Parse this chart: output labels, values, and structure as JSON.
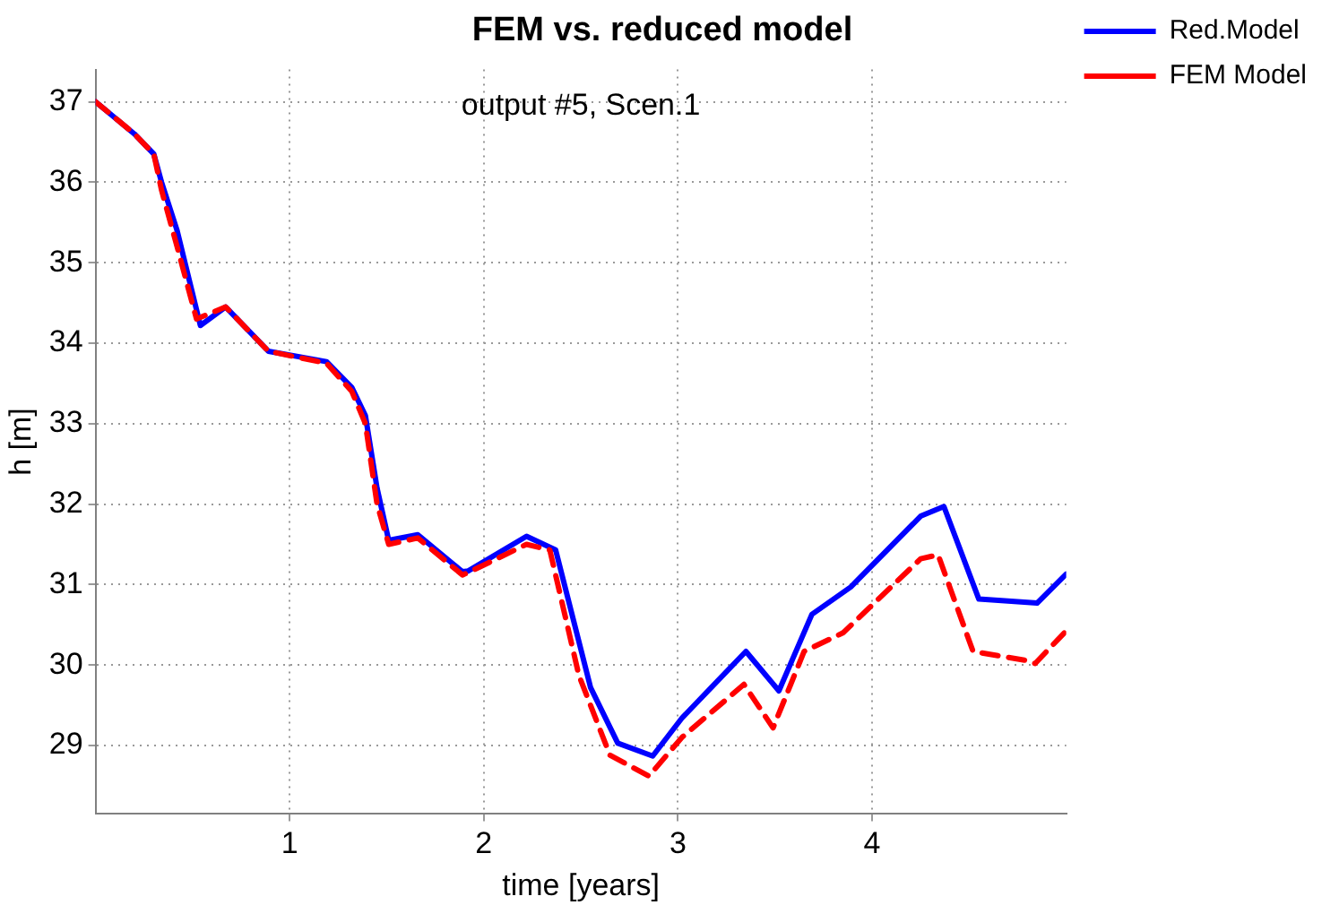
{
  "chart_data": {
    "type": "line",
    "title": "FEM vs. reduced model",
    "xlabel": "time [years]",
    "ylabel": "h [m]",
    "annotations": [
      "output #5, Scen.1"
    ],
    "xlim": [
      0,
      5
    ],
    "ylim": [
      28.15,
      37.4
    ],
    "xticks": [
      1,
      2,
      3,
      4
    ],
    "yticks": [
      29,
      30,
      31,
      32,
      33,
      34,
      35,
      36,
      37
    ],
    "grid": true,
    "legend": "top right",
    "marker": "none",
    "series": [
      {
        "name": "Red.Model",
        "color": "#0000ff",
        "line_style": "solid",
        "x": [
          0,
          0.1,
          0.2,
          0.3,
          0.34,
          0.42,
          0.54,
          0.67,
          0.89,
          1.19,
          1.32,
          1.39,
          1.45,
          1.51,
          1.66,
          1.89,
          1.92,
          2.22,
          2.37,
          2.55,
          2.69,
          2.87,
          3.02,
          3.35,
          3.52,
          3.69,
          3.89,
          4.25,
          4.37,
          4.55,
          4.85,
          5.0
        ],
        "values": [
          37.0,
          36.8,
          36.6,
          36.35,
          36.0,
          35.4,
          34.22,
          34.45,
          33.9,
          33.77,
          33.45,
          33.1,
          32.2,
          31.55,
          31.62,
          31.16,
          31.17,
          31.6,
          31.43,
          29.72,
          29.03,
          28.87,
          29.34,
          30.17,
          29.68,
          30.63,
          30.97,
          31.85,
          31.97,
          30.82,
          30.77,
          31.13
        ]
      },
      {
        "name": "FEM Model",
        "color": "#ff0000",
        "line_style": "dashed",
        "x": [
          0,
          0.1,
          0.2,
          0.3,
          0.34,
          0.42,
          0.52,
          0.67,
          0.89,
          1.19,
          1.32,
          1.39,
          1.45,
          1.51,
          1.66,
          1.89,
          1.92,
          2.22,
          2.34,
          2.49,
          2.65,
          2.85,
          3.02,
          3.34,
          3.49,
          3.65,
          3.85,
          4.25,
          4.34,
          4.52,
          4.79,
          4.84,
          4.99
        ],
        "values": [
          37.0,
          36.8,
          36.6,
          36.35,
          35.9,
          35.2,
          34.3,
          34.45,
          33.9,
          33.75,
          33.4,
          33.0,
          32.0,
          31.5,
          31.58,
          31.12,
          31.15,
          31.5,
          31.43,
          29.87,
          28.88,
          28.62,
          29.1,
          29.76,
          29.22,
          30.17,
          30.4,
          31.32,
          31.37,
          30.17,
          30.06,
          30.02,
          30.4
        ]
      }
    ]
  }
}
